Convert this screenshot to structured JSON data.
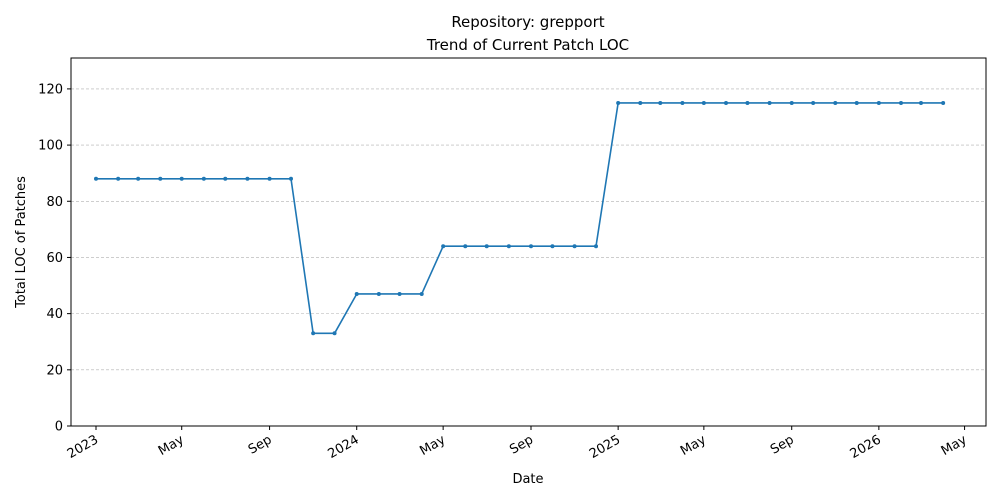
{
  "chart_data": {
    "type": "line",
    "title_line1": "Repository: grepport",
    "title_line2": "Trend of Current Patch LOC",
    "xlabel": "Date",
    "ylabel": "Total LOC of Patches",
    "ylim": [
      0,
      131
    ],
    "yticks": [
      0,
      20,
      40,
      60,
      80,
      100,
      120
    ],
    "xlim": [
      "2022-11-27",
      "2026-05-31"
    ],
    "xticks": [
      {
        "date": "2023-01-01",
        "label": "2023"
      },
      {
        "date": "2023-05-01",
        "label": "May"
      },
      {
        "date": "2023-09-01",
        "label": "Sep"
      },
      {
        "date": "2024-01-01",
        "label": "2024"
      },
      {
        "date": "2024-05-01",
        "label": "May"
      },
      {
        "date": "2024-09-01",
        "label": "Sep"
      },
      {
        "date": "2025-01-01",
        "label": "2025"
      },
      {
        "date": "2025-05-01",
        "label": "May"
      },
      {
        "date": "2025-09-01",
        "label": "Sep"
      },
      {
        "date": "2026-01-01",
        "label": "2026"
      },
      {
        "date": "2026-05-01",
        "label": "May"
      }
    ],
    "grid": "y-dashed",
    "color": "#1f77b4",
    "series": [
      {
        "x": [
          "2023-01-01",
          "2023-02-01",
          "2023-03-01",
          "2023-04-01",
          "2023-05-01",
          "2023-06-01",
          "2023-07-01",
          "2023-08-01",
          "2023-09-01",
          "2023-10-01",
          "2023-11-01",
          "2023-12-01",
          "2024-01-01",
          "2024-02-01",
          "2024-03-01",
          "2024-04-01",
          "2024-05-01",
          "2024-06-01",
          "2024-07-01",
          "2024-08-01",
          "2024-09-01",
          "2024-10-01",
          "2024-11-01",
          "2024-12-01",
          "2025-01-01",
          "2025-02-01",
          "2025-03-01",
          "2025-04-01",
          "2025-05-01",
          "2025-06-01",
          "2025-07-01",
          "2025-08-01",
          "2025-09-01",
          "2025-10-01",
          "2025-11-01",
          "2025-12-01",
          "2026-01-01",
          "2026-02-01",
          "2026-03-01",
          "2026-04-01"
        ],
        "values": [
          88,
          88,
          88,
          88,
          88,
          88,
          88,
          88,
          88,
          88,
          33,
          33,
          47,
          47,
          47,
          47,
          64,
          64,
          64,
          64,
          64,
          64,
          64,
          64,
          115,
          115,
          115,
          115,
          115,
          115,
          115,
          115,
          115,
          115,
          115,
          115,
          115,
          115,
          115,
          115
        ]
      }
    ]
  }
}
